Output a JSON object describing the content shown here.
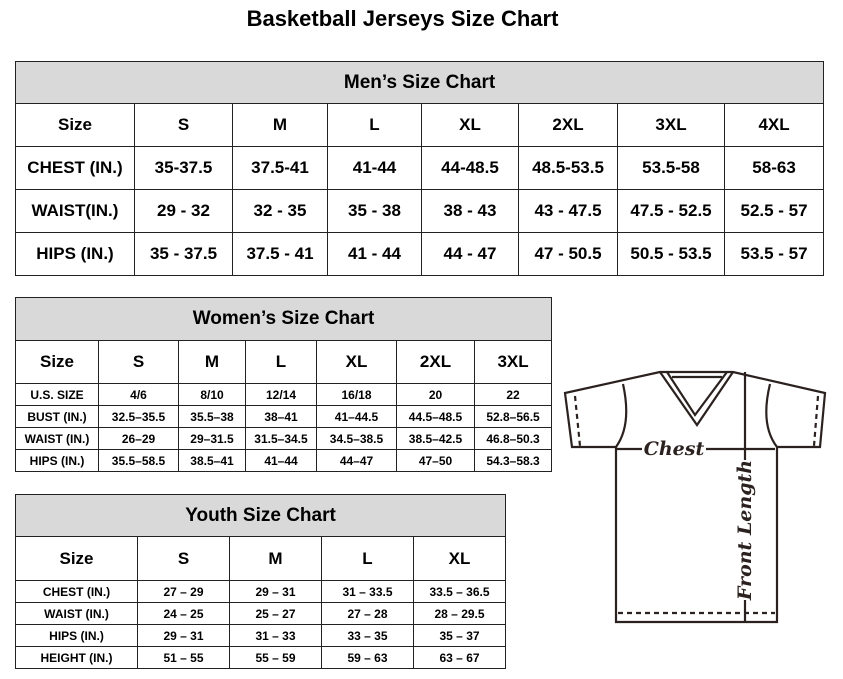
{
  "title": "Basketball Jerseys Size Chart",
  "men": {
    "title": "Men’s Size Chart",
    "header": [
      "Size",
      "S",
      "M",
      "L",
      "XL",
      "2XL",
      "3XL",
      "4XL"
    ],
    "rows": [
      [
        "CHEST (IN.)",
        "35-37.5",
        "37.5-41",
        "41-44",
        "44-48.5",
        "48.5-53.5",
        "53.5-58",
        "58-63"
      ],
      [
        "WAIST(IN.)",
        "29 - 32",
        "32 - 35",
        "35 - 38",
        "38 - 43",
        "43 - 47.5",
        "47.5 - 52.5",
        "52.5 - 57"
      ],
      [
        "HIPS (IN.)",
        "35 - 37.5",
        "37.5 - 41",
        "41 - 44",
        "44 - 47",
        "47 - 50.5",
        "50.5 - 53.5",
        "53.5 - 57"
      ]
    ]
  },
  "women": {
    "title": "Women’s Size Chart",
    "header": [
      "Size",
      "S",
      "M",
      "L",
      "XL",
      "2XL",
      "3XL"
    ],
    "rows": [
      [
        "U.S. SIZE",
        "4/6",
        "8/10",
        "12/14",
        "16/18",
        "20",
        "22"
      ],
      [
        "BUST (IN.)",
        "32.5–35.5",
        "35.5–38",
        "38–41",
        "41–44.5",
        "44.5–48.5",
        "52.8–56.5"
      ],
      [
        "WAIST (IN.)",
        "26–29",
        "29–31.5",
        "31.5–34.5",
        "34.5–38.5",
        "38.5–42.5",
        "46.8–50.3"
      ],
      [
        "HIPS (IN.)",
        "35.5–58.5",
        "38.5–41",
        "41–44",
        "44–47",
        "47–50",
        "54.3–58.3"
      ]
    ]
  },
  "youth": {
    "title": "Youth Size Chart",
    "header": [
      "Size",
      "S",
      "M",
      "L",
      "XL"
    ],
    "rows": [
      [
        "CHEST (IN.)",
        "27 – 29",
        "29 – 31",
        "31 – 33.5",
        "33.5 – 36.5"
      ],
      [
        "WAIST (IN.)",
        "24 – 25",
        "25 – 27",
        "27 – 28",
        "28 – 29.5"
      ],
      [
        "HIPS (IN.)",
        "29 – 31",
        "31 – 33",
        "33 – 35",
        "35 – 37"
      ],
      [
        "HEIGHT (IN.)",
        "51 – 55",
        "55 – 59",
        "59 – 63",
        "63 – 67"
      ]
    ]
  },
  "diagram": {
    "chest_label": "Chest",
    "length_label": "Front Length",
    "line_color": "#2b2220"
  }
}
